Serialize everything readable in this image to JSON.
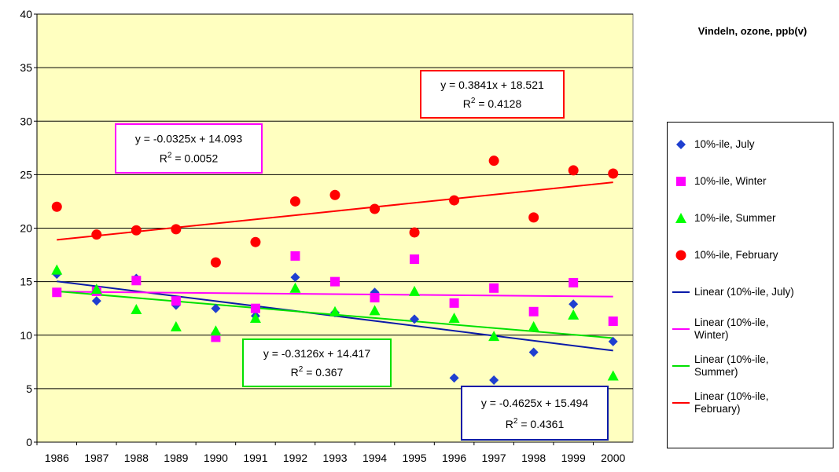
{
  "chart_data": {
    "type": "scatter",
    "legend_title": "Vindeln, ozone, ppb(v)",
    "categories": [
      "1986",
      "1987",
      "1988",
      "1989",
      "1990",
      "1991",
      "1992",
      "1993",
      "1994",
      "1995",
      "1996",
      "1997",
      "1998",
      "1999",
      "2000"
    ],
    "series": [
      {
        "name": "10%-ile, July",
        "color": "#1f3fd0",
        "marker": "diamond",
        "values": [
          15.7,
          13.2,
          15.3,
          12.8,
          12.5,
          11.8,
          15.4,
          12.1,
          14.0,
          11.5,
          6.0,
          5.8,
          8.4,
          12.9,
          9.4
        ]
      },
      {
        "name": "10%-ile, Winter",
        "color": "#ff00ff",
        "marker": "square",
        "values": [
          14.0,
          14.1,
          15.1,
          13.2,
          9.8,
          12.5,
          17.4,
          15.0,
          13.5,
          17.1,
          13.0,
          14.4,
          12.2,
          14.9,
          11.3
        ]
      },
      {
        "name": "10%-ile, Summer",
        "color": "#00ff00",
        "marker": "triangle",
        "values": [
          16.1,
          14.3,
          12.4,
          10.8,
          10.4,
          11.6,
          14.4,
          12.2,
          12.3,
          14.1,
          11.6,
          9.9,
          10.8,
          11.9,
          6.2
        ]
      },
      {
        "name": "10%-ile, February",
        "color": "#ff0000",
        "marker": "circle",
        "values": [
          22.0,
          19.4,
          19.8,
          19.9,
          16.8,
          18.7,
          22.5,
          23.1,
          21.8,
          19.6,
          22.6,
          26.3,
          21.0,
          25.4,
          25.1
        ]
      }
    ],
    "trendlines": [
      {
        "name": "Linear (10%-ile, July)",
        "color": "#0a1aa8",
        "slope": -0.4625,
        "intercept": 15.494,
        "equation": "y = -0.4625x + 15.494",
        "r2_prefix": "R",
        "r2_sup": "2",
        "r2_rest": " = 0.4361"
      },
      {
        "name": "Linear (10%-ile, Winter)",
        "color": "#ff00ff",
        "slope": -0.0325,
        "intercept": 14.093,
        "equation": "y = -0.0325x + 14.093",
        "r2_prefix": "R",
        "r2_sup": "2",
        "r2_rest": " = 0.0052"
      },
      {
        "name": "Linear (10%-ile, Summer)",
        "color": "#00e000",
        "slope": -0.3126,
        "intercept": 14.417,
        "equation": "y = -0.3126x + 14.417",
        "r2_prefix": "R",
        "r2_sup": "2",
        "r2_rest": " = 0.367"
      },
      {
        "name": "Linear (10%-ile, February)",
        "color": "#ff0000",
        "slope": 0.3841,
        "intercept": 18.521,
        "equation": "y = 0.3841x + 18.521",
        "r2_prefix": "R",
        "r2_sup": "2",
        "r2_rest": " = 0.4128"
      }
    ],
    "ylim": [
      0,
      40
    ],
    "yticks": [
      0,
      5,
      10,
      15,
      20,
      25,
      30,
      35,
      40
    ],
    "grid": true
  }
}
